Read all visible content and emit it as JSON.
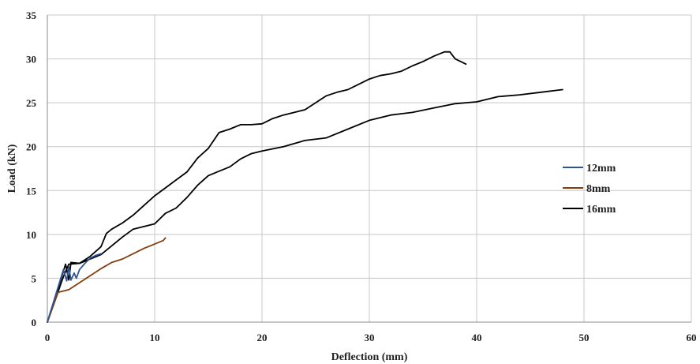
{
  "chart_data": {
    "type": "line",
    "title": "",
    "xlabel": "Deflection (mm)",
    "ylabel": "Load (kN)",
    "xlim": [
      0,
      60
    ],
    "ylim": [
      0,
      35
    ],
    "xticks": [
      "0",
      "10",
      "20",
      "30",
      "40",
      "50",
      "60"
    ],
    "yticks": [
      "0",
      "5",
      "10",
      "15",
      "20",
      "25",
      "30",
      "35"
    ],
    "grid": true,
    "legend_position": "right",
    "series": [
      {
        "name": "12mm",
        "color": "#2f5597",
        "points": [
          [
            0,
            0
          ],
          [
            1.5,
            6.0
          ],
          [
            1.8,
            4.7
          ],
          [
            2.0,
            6.3
          ],
          [
            2.2,
            4.8
          ],
          [
            2.5,
            5.6
          ],
          [
            2.7,
            5.0
          ],
          [
            3.0,
            6.0
          ],
          [
            3.5,
            6.7
          ],
          [
            4.0,
            7.3
          ],
          [
            4.5,
            7.6
          ],
          [
            5.0,
            7.8
          ]
        ]
      },
      {
        "name": "8mm",
        "color": "#843c0c",
        "points": [
          [
            0,
            0
          ],
          [
            1.0,
            3.4
          ],
          [
            2.0,
            3.7
          ],
          [
            3.0,
            4.5
          ],
          [
            4.0,
            5.3
          ],
          [
            5.0,
            6.1
          ],
          [
            6.0,
            6.8
          ],
          [
            7.0,
            7.2
          ],
          [
            8.0,
            7.8
          ],
          [
            9.0,
            8.4
          ],
          [
            10.0,
            8.9
          ],
          [
            10.8,
            9.3
          ],
          [
            11.0,
            9.6
          ]
        ]
      },
      {
        "name": "16mm",
        "color": "#000000",
        "points": [
          [
            0,
            0
          ],
          [
            1.7,
            6.6
          ],
          [
            2.0,
            4.8
          ],
          [
            2.2,
            6.8
          ],
          [
            3.0,
            6.7
          ],
          [
            4.0,
            7.2
          ],
          [
            5.0,
            7.7
          ],
          [
            6.0,
            8.7
          ],
          [
            7.0,
            9.7
          ],
          [
            8.0,
            10.6
          ],
          [
            10.0,
            11.2
          ],
          [
            11.0,
            12.4
          ],
          [
            12.0,
            13.0
          ],
          [
            13.0,
            14.2
          ],
          [
            14.0,
            15.6
          ],
          [
            15.0,
            16.7
          ],
          [
            16.0,
            17.2
          ],
          [
            17.0,
            17.7
          ],
          [
            18.0,
            18.6
          ],
          [
            19.0,
            19.2
          ],
          [
            20.0,
            19.5
          ],
          [
            22.0,
            20.0
          ],
          [
            24.0,
            20.7
          ],
          [
            26.0,
            21.0
          ],
          [
            28.0,
            22.0
          ],
          [
            30.0,
            23.0
          ],
          [
            32.0,
            23.6
          ],
          [
            34.0,
            23.9
          ],
          [
            36.0,
            24.4
          ],
          [
            38.0,
            24.9
          ],
          [
            40.0,
            25.1
          ],
          [
            42.0,
            25.7
          ],
          [
            44.0,
            25.9
          ],
          [
            46.0,
            26.2
          ],
          [
            48.0,
            26.5
          ]
        ]
      },
      {
        "name": "",
        "color": "#000000",
        "points": [
          [
            0,
            0
          ],
          [
            1.5,
            5.2
          ],
          [
            2.0,
            6.6
          ],
          [
            3.0,
            6.7
          ],
          [
            4.0,
            7.5
          ],
          [
            5.0,
            8.6
          ],
          [
            5.5,
            10.1
          ],
          [
            6.0,
            10.6
          ],
          [
            7.0,
            11.3
          ],
          [
            8.0,
            12.2
          ],
          [
            9.0,
            13.3
          ],
          [
            10.0,
            14.4
          ],
          [
            11.0,
            15.3
          ],
          [
            12.0,
            16.2
          ],
          [
            13.0,
            17.1
          ],
          [
            14.0,
            18.7
          ],
          [
            15.0,
            19.8
          ],
          [
            16.0,
            21.6
          ],
          [
            17.0,
            22.0
          ],
          [
            18.0,
            22.5
          ],
          [
            19.0,
            22.5
          ],
          [
            20.0,
            22.6
          ],
          [
            21.0,
            23.2
          ],
          [
            22.0,
            23.6
          ],
          [
            24.0,
            24.2
          ],
          [
            25.0,
            25.0
          ],
          [
            26.0,
            25.8
          ],
          [
            27.0,
            26.2
          ],
          [
            28.0,
            26.5
          ],
          [
            29.0,
            27.1
          ],
          [
            30.0,
            27.7
          ],
          [
            31.0,
            28.1
          ],
          [
            32.0,
            28.3
          ],
          [
            33.0,
            28.6
          ],
          [
            34.0,
            29.2
          ],
          [
            35.0,
            29.7
          ],
          [
            36.0,
            30.3
          ],
          [
            37.0,
            30.8
          ],
          [
            37.5,
            30.8
          ],
          [
            38.0,
            30.0
          ],
          [
            39.0,
            29.4
          ]
        ]
      }
    ],
    "legend": [
      "12mm",
      "8mm",
      "16mm"
    ]
  }
}
